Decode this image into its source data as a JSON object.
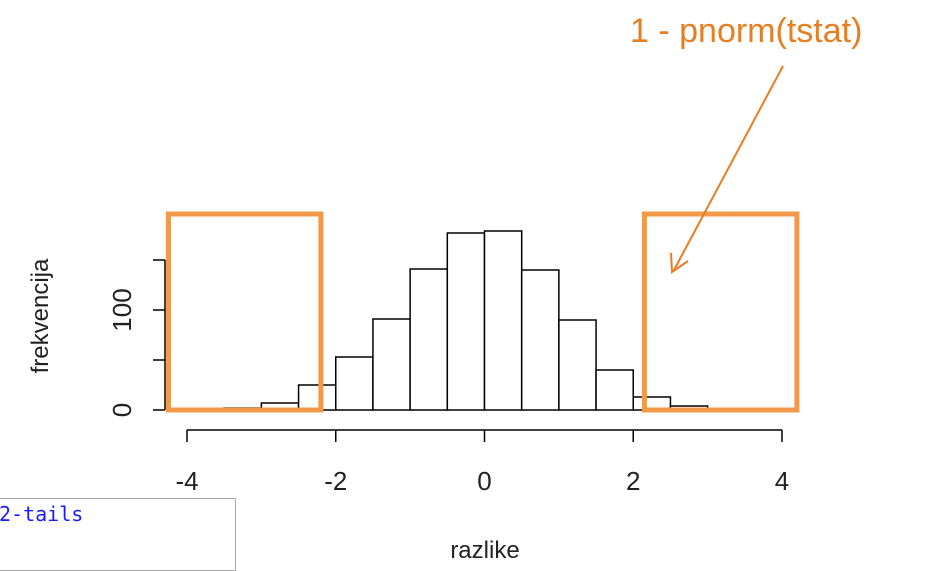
{
  "annotation": {
    "text": "1 - pnorm(tstat)",
    "color": "#e67e22"
  },
  "code_snippet": {
    "visible_text": "2-tails",
    "color": "#1a1aff"
  },
  "highlight_color": "#f39a4a",
  "chart_data": {
    "type": "bar",
    "title": "",
    "xlabel": "razlike",
    "ylabel": "frekvencija",
    "xlim": [
      -4,
      4
    ],
    "ylim": [
      0,
      170
    ],
    "xticks": [
      -4,
      -2,
      0,
      2,
      4
    ],
    "yticks": [
      0,
      50,
      100,
      150
    ],
    "ytick_labels": [
      "0",
      "",
      "100",
      ""
    ],
    "bin_edges": [
      -4.0,
      -3.5,
      -3.0,
      -2.5,
      -2.0,
      -1.5,
      -1.0,
      -0.5,
      0.0,
      0.5,
      1.0,
      1.5,
      2.0,
      2.5,
      3.0,
      3.5,
      4.0
    ],
    "values": [
      1,
      2,
      7,
      25,
      53,
      91,
      141,
      177,
      179,
      140,
      90,
      40,
      13,
      4,
      0,
      1
    ],
    "highlight_regions": [
      {
        "x_from": -4.25,
        "x_to": -2.2
      },
      {
        "x_from": 2.15,
        "x_to": 4.2
      }
    ]
  }
}
